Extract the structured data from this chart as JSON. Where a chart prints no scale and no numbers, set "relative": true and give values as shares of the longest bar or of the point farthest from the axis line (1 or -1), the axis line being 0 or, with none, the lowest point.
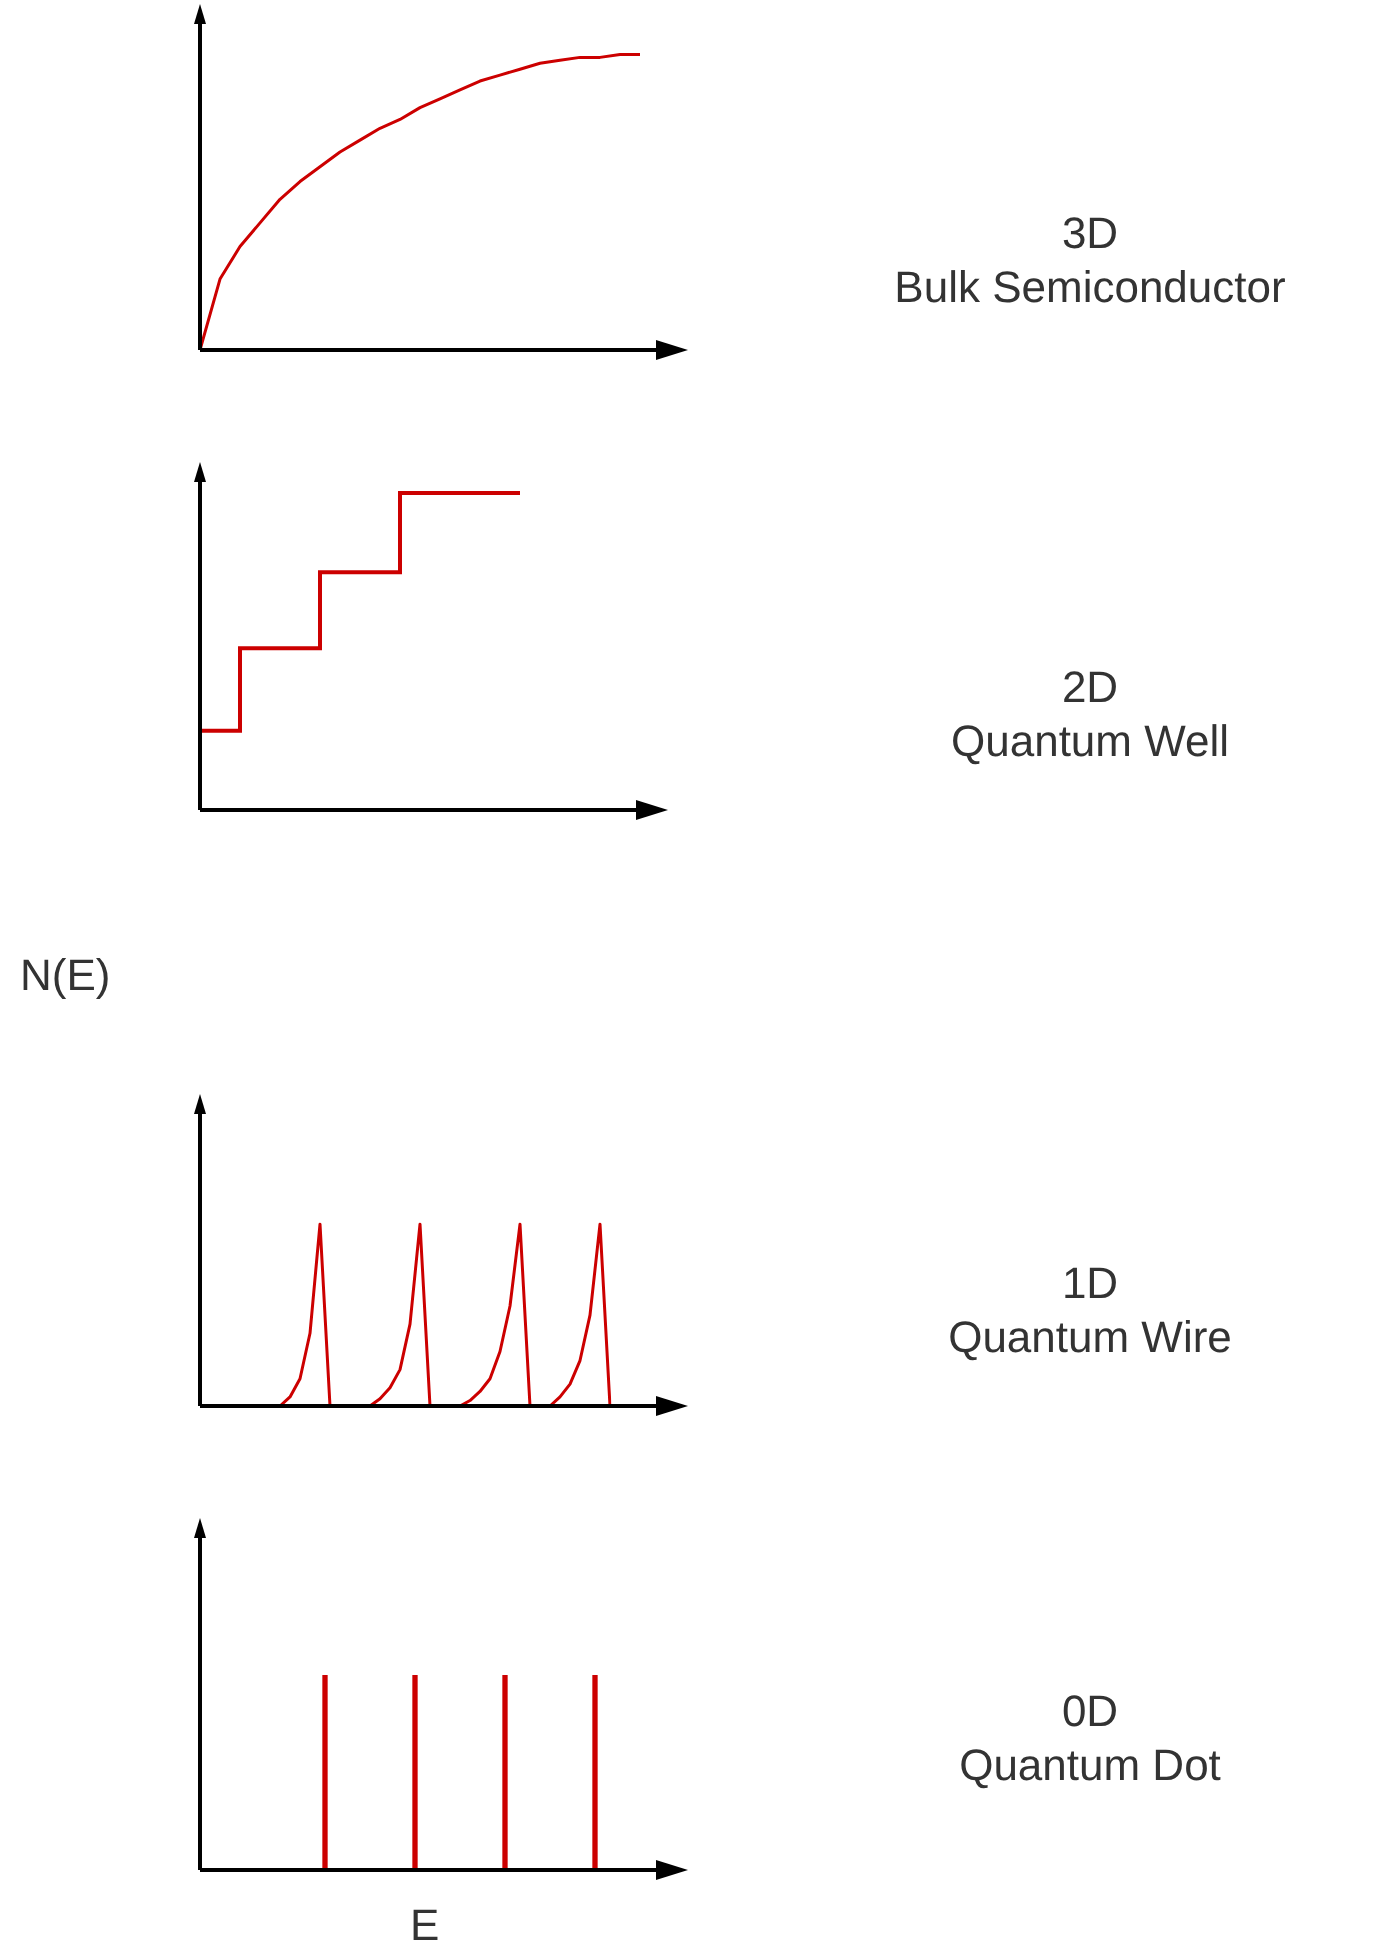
{
  "chart_data": [
    {
      "type": "line",
      "annotations": [
        "3D",
        "Bulk Semiconductor"
      ],
      "relative": true,
      "marker": "none",
      "color": "#cc0000",
      "categories": [
        null,
        null,
        null,
        null,
        null,
        null,
        null,
        null,
        null,
        null,
        null,
        null,
        null,
        null,
        null,
        null,
        null,
        null,
        null,
        null,
        null,
        null,
        null,
        null
      ],
      "values": [
        0,
        0.24,
        0.35,
        0.43,
        0.51,
        0.57,
        0.62,
        0.67,
        0.71,
        0.75,
        0.78,
        0.82,
        0.85,
        0.88,
        0.91,
        0.93,
        0.95,
        0.97,
        0.98,
        0.99,
        0.99,
        1,
        1,
        null
      ]
    },
    {
      "type": "step",
      "annotations": [
        "2D",
        "Quantum Well"
      ],
      "relative": true,
      "marker": "none",
      "color": "#cc0000",
      "categories": [
        null,
        null,
        null,
        null,
        null,
        null,
        null,
        null,
        null,
        null,
        null,
        null
      ],
      "values": [
        0.25,
        0.25,
        0.51,
        0.51,
        0.75,
        0.75,
        1,
        1,
        1,
        null,
        null,
        null
      ]
    },
    {
      "type": "line",
      "annotations": [
        "1D",
        "Quantum Wire"
      ],
      "ylabel": "N(E)",
      "relative": true,
      "marker": "none",
      "color": "#cc0000",
      "categories": [
        null,
        null,
        null,
        null,
        null,
        null,
        null,
        null,
        null,
        null,
        null,
        null,
        null,
        null,
        null,
        null,
        null,
        null,
        null,
        null,
        null,
        null,
        null,
        null,
        null,
        null,
        null,
        null,
        null,
        null,
        null,
        null,
        null,
        null
      ],
      "values": [
        0,
        0.05,
        0.15,
        0.4,
        1,
        0,
        0,
        0,
        0,
        0,
        0.04,
        0.1,
        0.2,
        0.45,
        1,
        0,
        0,
        0,
        0,
        0.03,
        0.08,
        0.15,
        0.3,
        0.55,
        1,
        0,
        0,
        0,
        0.05,
        0.12,
        0.25,
        0.5,
        1,
        0
      ]
    },
    {
      "type": "bar",
      "annotations": [
        "0D",
        "Quantum Dot"
      ],
      "xlabel": "E",
      "relative": true,
      "color": "#cc0000",
      "categories": [
        null,
        null,
        null,
        null
      ],
      "values": [
        1,
        1,
        1,
        1
      ]
    }
  ]
}
